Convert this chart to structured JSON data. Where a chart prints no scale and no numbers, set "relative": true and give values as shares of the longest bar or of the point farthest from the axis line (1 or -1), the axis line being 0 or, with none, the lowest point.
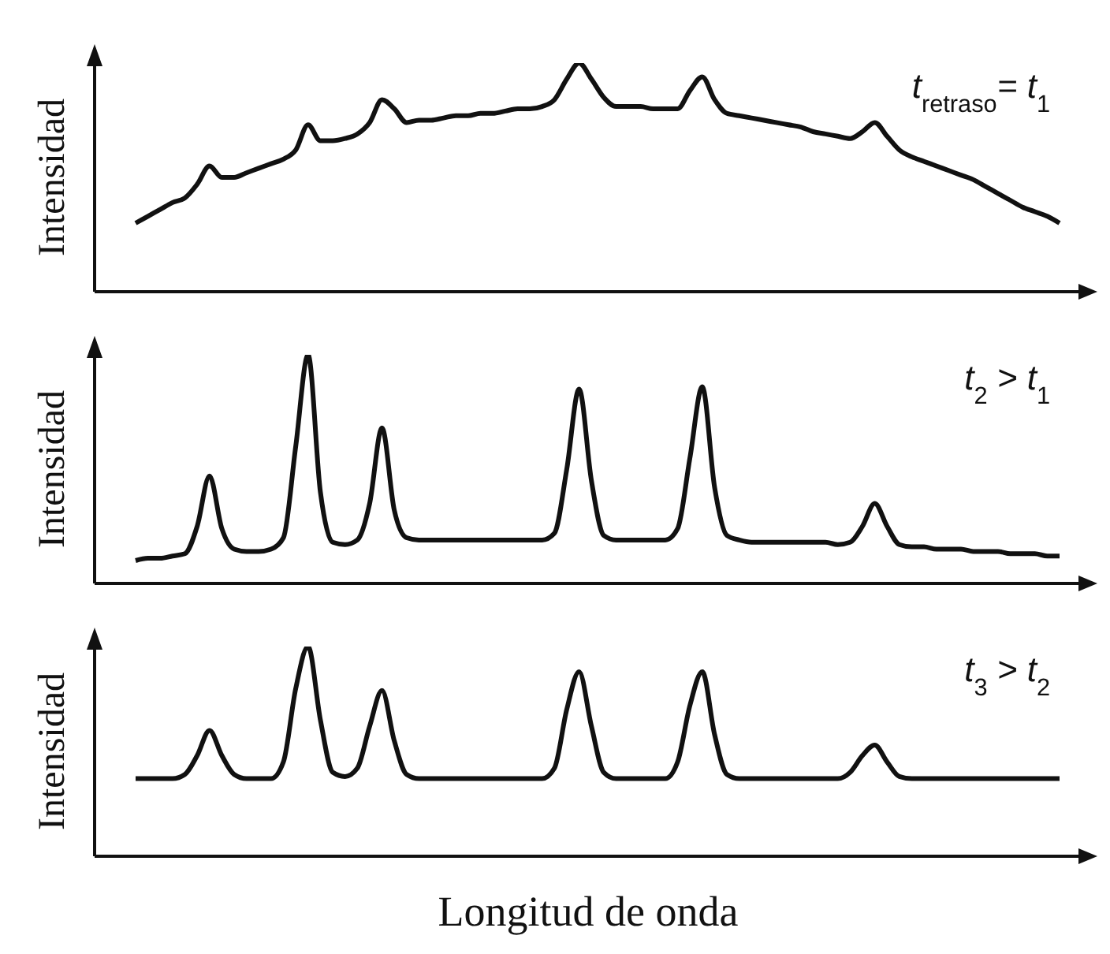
{
  "chart_data": [
    {
      "type": "line",
      "relative": true,
      "ylabel": "Intensidad",
      "annotations": [
        "t$_{retraso}$= t$_{1}$"
      ],
      "color": "#111111",
      "categories": [
        null,
        null,
        null,
        null,
        null,
        null,
        null,
        null,
        null,
        null,
        null,
        null,
        null,
        null,
        null,
        null,
        null,
        null,
        null,
        null,
        null,
        null,
        null,
        null,
        null,
        null,
        null,
        null,
        null,
        null,
        null,
        null,
        null,
        null,
        null,
        null,
        null,
        null,
        null,
        null,
        null,
        null,
        null,
        null,
        null,
        null,
        null,
        null,
        null,
        null,
        null,
        null,
        null,
        null,
        null,
        null,
        null,
        null,
        null,
        null,
        null,
        null,
        null,
        null,
        null,
        null,
        null,
        null,
        null,
        null,
        null,
        null,
        null,
        null,
        null,
        null
      ],
      "values": [
        0.3,
        0.33,
        0.36,
        0.39,
        0.41,
        0.47,
        0.55,
        0.5,
        0.5,
        0.52,
        0.54,
        0.56,
        0.58,
        0.62,
        0.73,
        0.66,
        0.66,
        0.67,
        0.69,
        0.74,
        0.84,
        0.8,
        0.74,
        0.75,
        0.75,
        0.76,
        0.77,
        0.77,
        0.78,
        0.78,
        0.79,
        0.8,
        0.8,
        0.81,
        0.84,
        0.93,
        1.0,
        0.93,
        0.85,
        0.81,
        0.81,
        0.81,
        0.8,
        0.8,
        0.8,
        0.88,
        0.94,
        0.84,
        0.78,
        0.77,
        0.76,
        0.75,
        0.74,
        0.73,
        0.72,
        0.7,
        0.69,
        0.68,
        0.67,
        0.7,
        0.74,
        0.68,
        0.62,
        0.59,
        0.57,
        0.55,
        0.53,
        0.51,
        0.49,
        0.46,
        0.43,
        0.4,
        0.37,
        0.35,
        0.33,
        0.3
      ]
    },
    {
      "type": "line",
      "relative": true,
      "ylabel": "Intensidad",
      "annotations": [
        "t$_{2}$ > t$_{1}$"
      ],
      "color": "#111111",
      "categories": [
        null,
        null,
        null,
        null,
        null,
        null,
        null,
        null,
        null,
        null,
        null,
        null,
        null,
        null,
        null,
        null,
        null,
        null,
        null,
        null,
        null,
        null,
        null,
        null,
        null,
        null,
        null,
        null,
        null,
        null,
        null,
        null,
        null,
        null,
        null,
        null,
        null,
        null,
        null,
        null,
        null,
        null,
        null,
        null,
        null,
        null,
        null,
        null,
        null,
        null,
        null,
        null,
        null,
        null,
        null,
        null,
        null,
        null,
        null,
        null,
        null,
        null,
        null,
        null,
        null,
        null,
        null,
        null,
        null,
        null,
        null,
        null,
        null,
        null,
        null,
        null
      ],
      "values": [
        0.1,
        0.11,
        0.11,
        0.12,
        0.13,
        0.25,
        0.47,
        0.24,
        0.15,
        0.14,
        0.14,
        0.15,
        0.2,
        0.6,
        1.0,
        0.4,
        0.18,
        0.17,
        0.19,
        0.35,
        0.68,
        0.32,
        0.2,
        0.19,
        0.19,
        0.19,
        0.19,
        0.19,
        0.19,
        0.19,
        0.19,
        0.19,
        0.19,
        0.19,
        0.22,
        0.5,
        0.85,
        0.45,
        0.21,
        0.19,
        0.19,
        0.19,
        0.19,
        0.19,
        0.24,
        0.55,
        0.86,
        0.42,
        0.21,
        0.19,
        0.18,
        0.18,
        0.18,
        0.18,
        0.18,
        0.18,
        0.18,
        0.17,
        0.18,
        0.25,
        0.35,
        0.25,
        0.17,
        0.16,
        0.16,
        0.15,
        0.15,
        0.15,
        0.14,
        0.14,
        0.14,
        0.13,
        0.13,
        0.13,
        0.12,
        0.12
      ]
    },
    {
      "type": "line",
      "relative": true,
      "ylabel": "Intensidad",
      "xlabel": "Longitud de onda",
      "annotations": [
        "t$_{3}$ > t$_{2}$"
      ],
      "color": "#111111",
      "categories": [
        null,
        null,
        null,
        null,
        null,
        null,
        null,
        null,
        null,
        null,
        null,
        null,
        null,
        null,
        null,
        null,
        null,
        null,
        null,
        null,
        null,
        null,
        null,
        null,
        null,
        null,
        null,
        null,
        null,
        null,
        null,
        null,
        null,
        null,
        null,
        null,
        null,
        null,
        null,
        null,
        null,
        null,
        null,
        null,
        null,
        null,
        null,
        null,
        null,
        null,
        null,
        null,
        null,
        null,
        null,
        null,
        null,
        null,
        null,
        null,
        null,
        null,
        null,
        null,
        null,
        null,
        null,
        null,
        null,
        null,
        null,
        null,
        null,
        null,
        null,
        null
      ],
      "values": [
        0.37,
        0.37,
        0.37,
        0.37,
        0.39,
        0.48,
        0.6,
        0.48,
        0.39,
        0.37,
        0.37,
        0.37,
        0.45,
        0.8,
        1.0,
        0.65,
        0.4,
        0.38,
        0.42,
        0.62,
        0.79,
        0.55,
        0.39,
        0.37,
        0.37,
        0.37,
        0.37,
        0.37,
        0.37,
        0.37,
        0.37,
        0.37,
        0.37,
        0.37,
        0.42,
        0.7,
        0.88,
        0.62,
        0.4,
        0.37,
        0.37,
        0.37,
        0.37,
        0.37,
        0.45,
        0.72,
        0.88,
        0.58,
        0.39,
        0.37,
        0.37,
        0.37,
        0.37,
        0.37,
        0.37,
        0.37,
        0.37,
        0.37,
        0.4,
        0.48,
        0.53,
        0.45,
        0.38,
        0.37,
        0.37,
        0.37,
        0.37,
        0.37,
        0.37,
        0.37,
        0.37,
        0.37,
        0.37,
        0.37,
        0.37,
        0.37
      ]
    }
  ]
}
